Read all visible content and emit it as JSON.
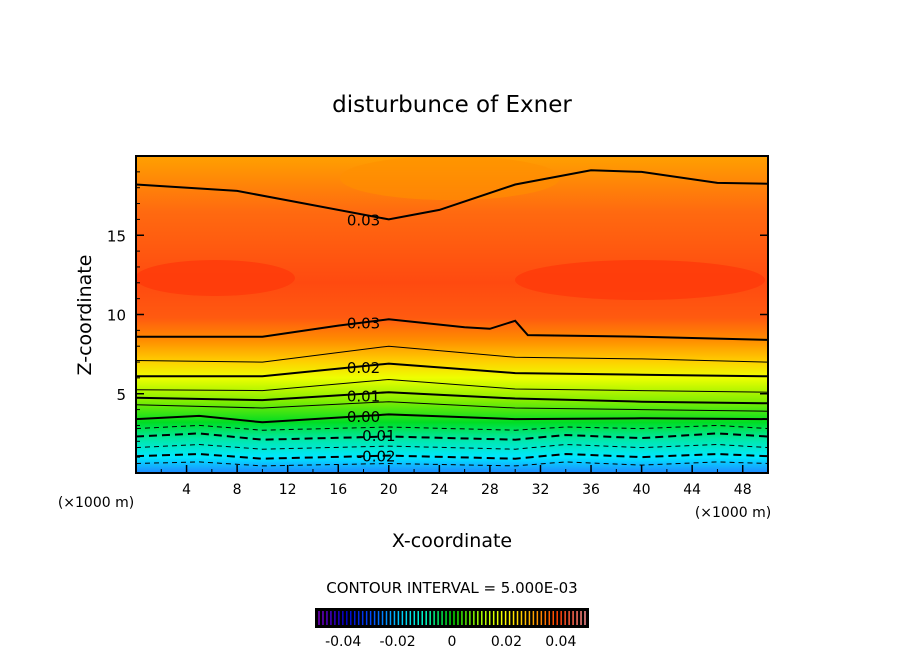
{
  "chart_data": {
    "type": "contour",
    "title": "disturbunce of Exner",
    "xlabel": "X-coordinate",
    "ylabel": "Z-coordinate",
    "x_unit_left": "(×1000 m)",
    "x_unit_right": "(×1000 m)",
    "xlim": [
      0,
      50
    ],
    "ylim": [
      0,
      20
    ],
    "xticks": [
      4,
      8,
      12,
      16,
      20,
      24,
      28,
      32,
      36,
      40,
      44,
      48
    ],
    "yticks": [
      5,
      10,
      15
    ],
    "contour_interval_text": "CONTOUR INTERVAL = 5.000E-03",
    "colorbar": {
      "range": [
        -0.05,
        0.05
      ],
      "ticks": [
        "-0.04",
        "-0.02",
        "0",
        "0.02",
        "0.04"
      ],
      "tick_values": [
        -0.04,
        -0.02,
        0,
        0.02,
        0.04
      ]
    },
    "contours": [
      {
        "level": 0.03,
        "major": true,
        "points": [
          [
            0,
            18.2
          ],
          [
            8,
            17.8
          ],
          [
            12,
            17.2
          ],
          [
            20,
            16.0
          ],
          [
            24,
            16.6
          ],
          [
            30,
            18.2
          ],
          [
            36,
            19.1
          ],
          [
            40,
            19.0
          ],
          [
            46,
            18.3
          ],
          [
            50,
            18.25
          ]
        ]
      },
      {
        "level": 0.03,
        "major": true,
        "points": [
          [
            0,
            8.6
          ],
          [
            10,
            8.6
          ],
          [
            16,
            9.3
          ],
          [
            20,
            9.7
          ],
          [
            26,
            9.2
          ],
          [
            28,
            9.1
          ],
          [
            30,
            9.6
          ],
          [
            31,
            8.7
          ],
          [
            40,
            8.6
          ],
          [
            50,
            8.4
          ]
        ]
      },
      {
        "level": 0.025,
        "major": false,
        "points": [
          [
            0,
            7.1
          ],
          [
            10,
            7.0
          ],
          [
            20,
            8.0
          ],
          [
            30,
            7.3
          ],
          [
            40,
            7.2
          ],
          [
            50,
            7.0
          ]
        ]
      },
      {
        "level": 0.02,
        "major": true,
        "points": [
          [
            0,
            6.1
          ],
          [
            10,
            6.1
          ],
          [
            20,
            6.9
          ],
          [
            30,
            6.3
          ],
          [
            40,
            6.2
          ],
          [
            50,
            6.1
          ]
        ]
      },
      {
        "level": 0.015,
        "major": false,
        "points": [
          [
            0,
            5.25
          ],
          [
            10,
            5.2
          ],
          [
            20,
            5.9
          ],
          [
            30,
            5.3
          ],
          [
            40,
            5.2
          ],
          [
            50,
            5.1
          ]
        ]
      },
      {
        "level": 0.01,
        "major": true,
        "points": [
          [
            0,
            4.75
          ],
          [
            10,
            4.6
          ],
          [
            20,
            5.1
          ],
          [
            30,
            4.7
          ],
          [
            40,
            4.5
          ],
          [
            50,
            4.4
          ]
        ]
      },
      {
        "level": 0.005,
        "major": false,
        "points": [
          [
            0,
            4.3
          ],
          [
            10,
            4.1
          ],
          [
            20,
            4.5
          ],
          [
            30,
            4.1
          ],
          [
            40,
            4.0
          ],
          [
            50,
            3.9
          ]
        ]
      },
      {
        "level": 0.0,
        "major": true,
        "points": [
          [
            0,
            3.4
          ],
          [
            5,
            3.6
          ],
          [
            10,
            3.2
          ],
          [
            20,
            3.7
          ],
          [
            30,
            3.4
          ],
          [
            40,
            3.45
          ],
          [
            50,
            3.4
          ]
        ]
      },
      {
        "level": -0.005,
        "major": false,
        "points": [
          [
            0,
            2.8
          ],
          [
            5,
            3.0
          ],
          [
            10,
            2.7
          ],
          [
            20,
            2.9
          ],
          [
            30,
            2.7
          ],
          [
            34,
            2.9
          ],
          [
            40,
            2.8
          ],
          [
            46,
            3.0
          ],
          [
            50,
            2.8
          ]
        ]
      },
      {
        "level": -0.01,
        "major": true,
        "points": [
          [
            0,
            2.3
          ],
          [
            5,
            2.5
          ],
          [
            10,
            2.1
          ],
          [
            20,
            2.3
          ],
          [
            30,
            2.1
          ],
          [
            34,
            2.4
          ],
          [
            40,
            2.2
          ],
          [
            46,
            2.5
          ],
          [
            50,
            2.3
          ]
        ]
      },
      {
        "level": -0.015,
        "major": false,
        "points": [
          [
            0,
            1.6
          ],
          [
            5,
            1.8
          ],
          [
            10,
            1.5
          ],
          [
            20,
            1.7
          ],
          [
            30,
            1.5
          ],
          [
            34,
            1.8
          ],
          [
            40,
            1.6
          ],
          [
            46,
            1.8
          ],
          [
            50,
            1.6
          ]
        ]
      },
      {
        "level": -0.02,
        "major": true,
        "points": [
          [
            0,
            1.06
          ],
          [
            5,
            1.2
          ],
          [
            10,
            0.9
          ],
          [
            20,
            1.1
          ],
          [
            30,
            0.9
          ],
          [
            34,
            1.2
          ],
          [
            40,
            1.0
          ],
          [
            46,
            1.2
          ],
          [
            50,
            1.06
          ]
        ]
      },
      {
        "level": -0.025,
        "major": false,
        "points": [
          [
            0,
            0.6
          ],
          [
            5,
            0.7
          ],
          [
            10,
            0.45
          ],
          [
            20,
            0.6
          ],
          [
            30,
            0.45
          ],
          [
            34,
            0.7
          ],
          [
            40,
            0.5
          ],
          [
            46,
            0.7
          ],
          [
            50,
            0.6
          ]
        ]
      }
    ],
    "line_labels": [
      {
        "text": "0.03",
        "x": 18,
        "y": 16.0
      },
      {
        "text": "0.03",
        "x": 18,
        "y": 9.5
      },
      {
        "text": "0.02",
        "x": 18,
        "y": 6.7
      },
      {
        "text": "0.01",
        "x": 18,
        "y": 4.9
      },
      {
        "text": "0.00",
        "x": 18,
        "y": 3.6
      },
      {
        "text": "-0.01",
        "x": 19,
        "y": 2.4
      },
      {
        "text": "-0.02",
        "x": 19,
        "y": 1.1
      }
    ],
    "fill_colors": [
      {
        "z": 0,
        "color": "#1e88ff"
      },
      {
        "z": 1,
        "color": "#00e8ff"
      },
      {
        "z": 2.2,
        "color": "#00e8a0"
      },
      {
        "z": 3.2,
        "color": "#00dd22"
      },
      {
        "z": 4.6,
        "color": "#88ee00"
      },
      {
        "z": 6.0,
        "color": "#eeff00"
      },
      {
        "z": 7.1,
        "color": "#ffcc00"
      },
      {
        "z": 8.4,
        "color": "#ff8c00"
      },
      {
        "z": 9.8,
        "color": "#ff5a10"
      },
      {
        "z": 12,
        "color": "#ff4a10"
      },
      {
        "z": 16.5,
        "color": "#ff6a10"
      },
      {
        "z": 20,
        "color": "#ffa000"
      }
    ]
  }
}
